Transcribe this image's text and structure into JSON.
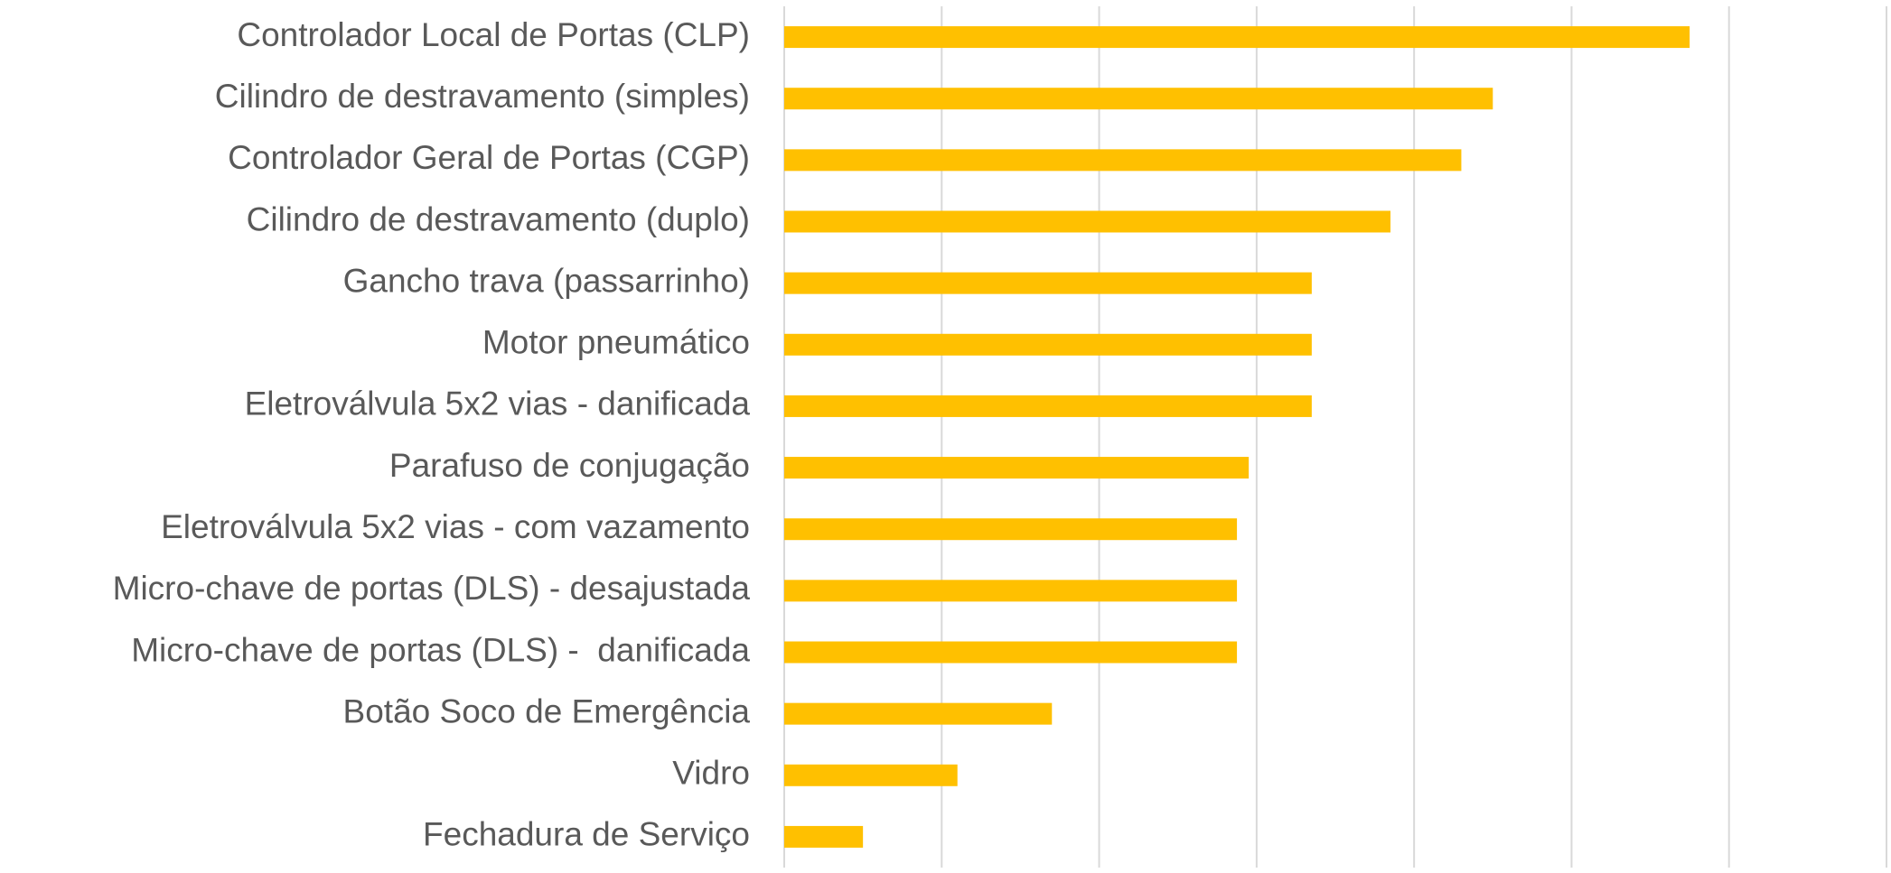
{
  "chart_data": {
    "type": "barh",
    "categories": [
      "Controlador Local de Portas (CLP)",
      "Cilindro de destravamento (simples)",
      "Controlador Geral de Portas (CGP)",
      "Cilindro de destravamento (duplo)",
      "Gancho trava (passarrinho)",
      "Motor pneumático",
      "Eletroválvula 5x2 vias - danificada",
      "Parafuso de conjugação",
      "Eletroválvula 5x2 vias - com vazamento",
      "Micro-chave de portas (DLS) - desajustada",
      "Micro-chave de portas (DLS) -  danificada",
      "Botão Soco de Emergência",
      "Vidro",
      "Fechadura de Serviço"
    ],
    "values": [
      11.5,
      9,
      8.6,
      7.7,
      6.7,
      6.7,
      6.7,
      5.9,
      5.75,
      5.75,
      5.75,
      3.4,
      2.2,
      1
    ],
    "color": "#ffc000",
    "xlim": [
      0,
      14
    ],
    "xticks": [
      0,
      2,
      4,
      6,
      8,
      10,
      12,
      14
    ],
    "grid": true
  }
}
